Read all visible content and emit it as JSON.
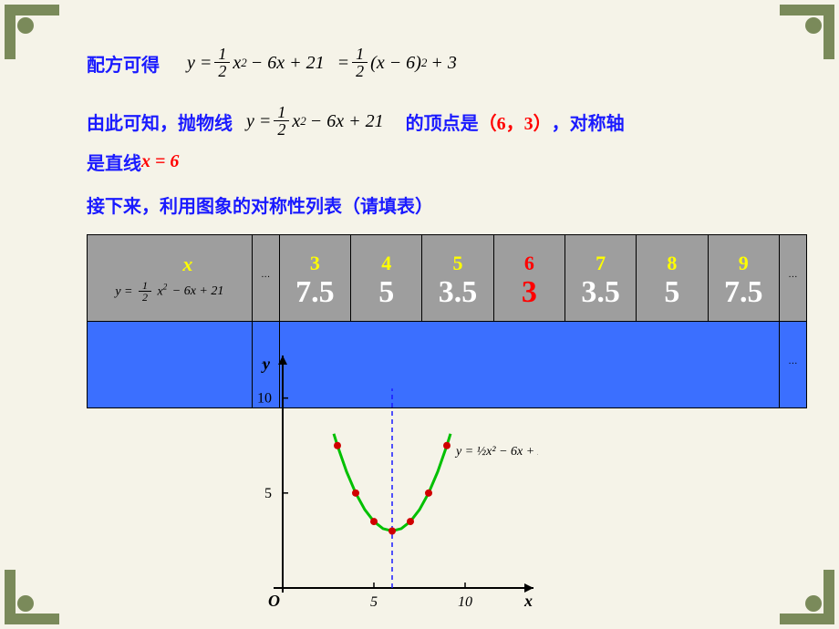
{
  "text": {
    "line1_prefix": "配方可得",
    "line2_prefix": "由此可知，抛物线",
    "line2_mid": "的顶点是",
    "vertex": "（6，3）",
    "line2_suffix": "，对称轴",
    "line3_prefix": "是直线 ",
    "axis_eq": "x = 6",
    "line4": "接下来，利用图象的对称性列表（请填表）",
    "x_label": "x",
    "y_axis": "y",
    "x_axis": "x",
    "origin": "O",
    "dots": "···",
    "tick5": "5",
    "tick10": "10"
  },
  "formula": {
    "main_lhs": "y =",
    "half_num": "1",
    "half_den": "2",
    "x2": "x",
    "sq": "2",
    "minus6x": "− 6x + 21",
    "eq": "=",
    "paren_l": "(",
    "xm6": "x − 6",
    "paren_r": ")",
    "plus3": "+ 3"
  },
  "table": {
    "x_values": [
      "3",
      "4",
      "5",
      "6",
      "7",
      "8",
      "9"
    ],
    "y_values": [
      "7.5",
      "5",
      "3.5",
      "3",
      "3.5",
      "5",
      "7.5"
    ],
    "vertex_index": 3
  },
  "chart": {
    "background": "#f5f3e8",
    "axis_color": "#000000",
    "curve_color": "#00c000",
    "point_color": "#d00000",
    "dash_color": "#1a1aff",
    "x_range": [
      0,
      13
    ],
    "y_range": [
      0,
      12
    ],
    "x_ticks": [
      5,
      10
    ],
    "y_ticks": [
      5,
      10
    ],
    "vertex_x": 6,
    "points": [
      {
        "x": 3,
        "y": 7.5
      },
      {
        "x": 4,
        "y": 5
      },
      {
        "x": 5,
        "y": 3.5
      },
      {
        "x": 6,
        "y": 3
      },
      {
        "x": 7,
        "y": 3.5
      },
      {
        "x": 8,
        "y": 5
      },
      {
        "x": 9,
        "y": 7.5
      }
    ],
    "curve": [
      {
        "x": 2.8,
        "y": 8.12
      },
      {
        "x": 3,
        "y": 7.5
      },
      {
        "x": 3.5,
        "y": 6.125
      },
      {
        "x": 4,
        "y": 5
      },
      {
        "x": 4.5,
        "y": 4.125
      },
      {
        "x": 5,
        "y": 3.5
      },
      {
        "x": 5.5,
        "y": 3.125
      },
      {
        "x": 6,
        "y": 3
      },
      {
        "x": 6.5,
        "y": 3.125
      },
      {
        "x": 7,
        "y": 3.5
      },
      {
        "x": 7.5,
        "y": 4.125
      },
      {
        "x": 8,
        "y": 5
      },
      {
        "x": 8.5,
        "y": 6.125
      },
      {
        "x": 9,
        "y": 7.5
      },
      {
        "x": 9.2,
        "y": 8.12
      }
    ]
  },
  "colors": {
    "bg": "#f5f3e8",
    "frame": "#7a8a5a",
    "blue_text": "#1a1aff",
    "red_text": "#ff0000",
    "yellow_text": "#ffff00",
    "white_text": "#ffffff",
    "table_header": "#9e9e9e",
    "table_body": "#3b6fff"
  }
}
